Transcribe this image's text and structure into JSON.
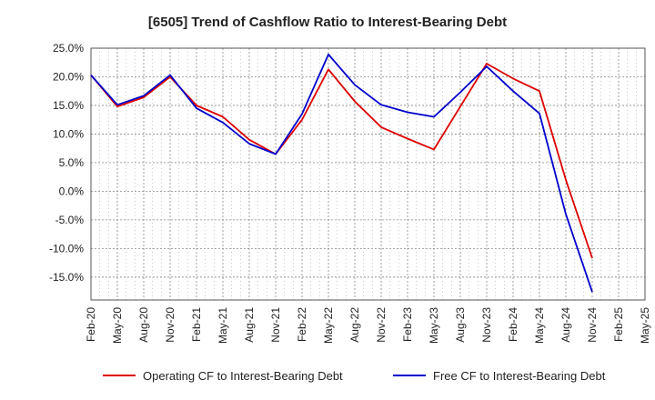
{
  "title": "[6505]  Trend of Cashflow Ratio to Interest-Bearing Debt",
  "chart_data": {
    "type": "line",
    "title": "[6505]  Trend of Cashflow Ratio to Interest-Bearing Debt",
    "xlabel": "",
    "ylabel": "",
    "categories": [
      "Feb-20",
      "May-20",
      "Aug-20",
      "Nov-20",
      "Feb-21",
      "May-21",
      "Aug-21",
      "Nov-21",
      "Feb-22",
      "May-22",
      "Aug-22",
      "Nov-22",
      "Feb-23",
      "May-23",
      "Aug-23",
      "Nov-23",
      "Feb-24",
      "May-24",
      "Aug-24",
      "Nov-24",
      "Feb-25",
      "May-25"
    ],
    "y_tick_labels": [
      "25.0%",
      "20.0%",
      "15.0%",
      "10.0%",
      "5.0%",
      "0.0%",
      "-5.0%",
      "-10.0%",
      "-15.0%"
    ],
    "ylim": [
      -19,
      25
    ],
    "y_unit": "%",
    "grid": true,
    "legend_position": "bottom",
    "series": [
      {
        "name": "Operating CF to Interest-Bearing Debt",
        "color": "#dd0000",
        "values": [
          20.3,
          14.8,
          16.4,
          20.0,
          15.0,
          13.0,
          9.0,
          6.5,
          12.5,
          21.3,
          15.7,
          11.2,
          9.2,
          7.3,
          14.8,
          22.3,
          19.7,
          17.5,
          2.0,
          -11.7,
          null,
          null
        ]
      },
      {
        "name": "Free CF to Interest-Bearing Debt",
        "color": "#0000cc",
        "values": [
          20.3,
          15.1,
          16.7,
          20.3,
          14.5,
          12.0,
          8.3,
          6.5,
          13.5,
          23.9,
          18.6,
          15.1,
          13.8,
          13.0,
          17.3,
          21.8,
          17.5,
          13.6,
          -4.0,
          -17.6,
          null,
          null
        ]
      }
    ]
  }
}
